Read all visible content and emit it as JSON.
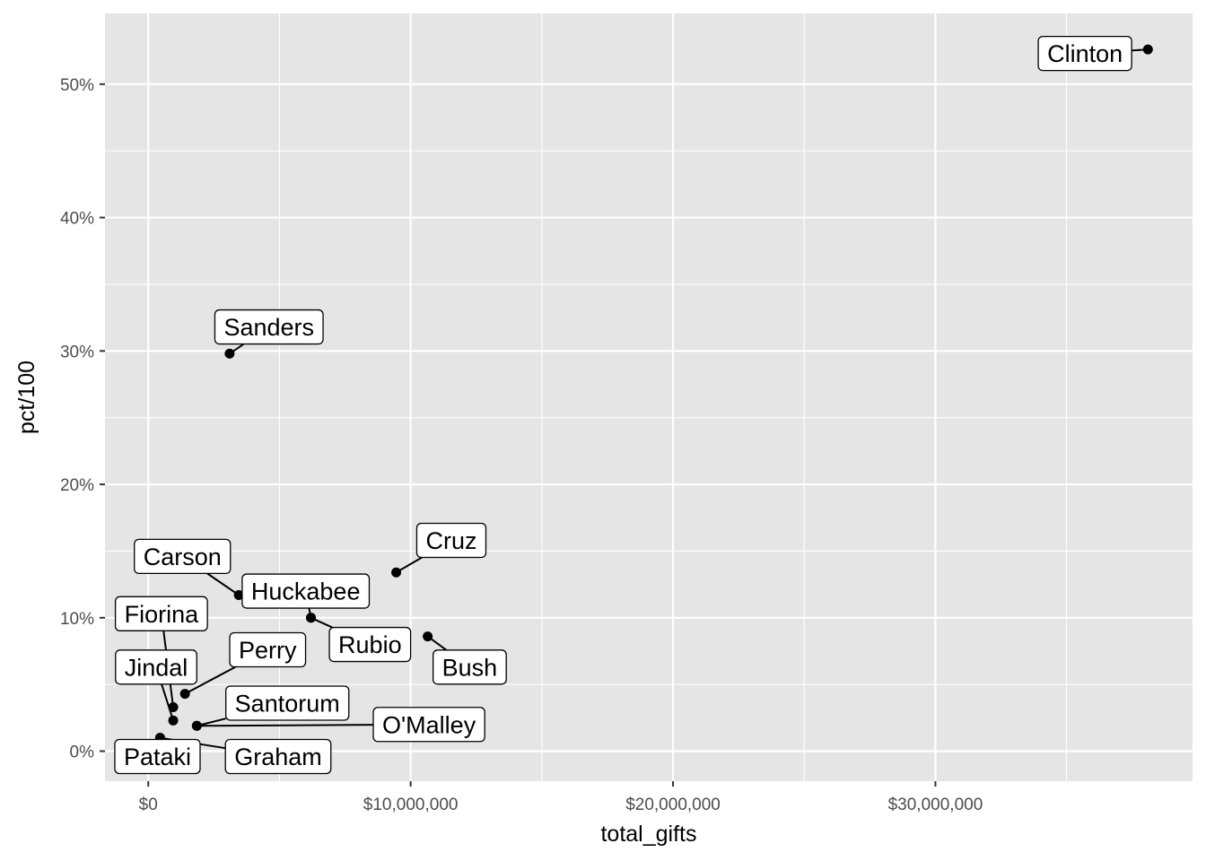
{
  "chart_data": {
    "type": "scatter",
    "xlabel": "total_gifts",
    "ylabel": "pct/100",
    "xlim": [
      -1650000,
      39800000
    ],
    "ylim": [
      -0.0225,
      0.553
    ],
    "x_ticks": [
      0,
      10000000,
      20000000,
      30000000
    ],
    "x_tick_labels": [
      "$0",
      "$10,000,000",
      "$20,000,000",
      "$30,000,000"
    ],
    "x_minor_ticks": [
      5000000,
      15000000,
      25000000,
      35000000
    ],
    "y_ticks": [
      0,
      0.1,
      0.2,
      0.3,
      0.4,
      0.5
    ],
    "y_tick_labels": [
      "0%",
      "10%",
      "20%",
      "30%",
      "40%",
      "50%"
    ],
    "y_minor_ticks": [
      0.05,
      0.15,
      0.25,
      0.35,
      0.45
    ],
    "grid": true,
    "colors": {
      "panel": "#e5e5e5",
      "grid": "#ffffff",
      "point": "#000000",
      "label_fill": "#ffffff"
    },
    "points": [
      {
        "name": "Clinton",
        "x": 38100000,
        "y": 0.526,
        "label_x": 35700000,
        "label_y": 0.523
      },
      {
        "name": "Sanders",
        "x": 3100000,
        "y": 0.298,
        "label_x": 4600000,
        "label_y": 0.318
      },
      {
        "name": "Cruz",
        "x": 9450000,
        "y": 0.134,
        "label_x": 11550000,
        "label_y": 0.158
      },
      {
        "name": "Carson",
        "x": 3450000,
        "y": 0.117,
        "label_x": 1300000,
        "label_y": 0.146
      },
      {
        "name": "Huckabee",
        "x": 6200000,
        "y": 0.1,
        "label_x": 6000000,
        "label_y": 0.12
      },
      {
        "name": "Rubio",
        "x": 6200000,
        "y": 0.1,
        "label_x": 8450000,
        "label_y": 0.08
      },
      {
        "name": "Bush",
        "x": 10650000,
        "y": 0.086,
        "label_x": 12250000,
        "label_y": 0.063
      },
      {
        "name": "Fiorina",
        "x": 950000,
        "y": 0.033,
        "label_x": 500000,
        "label_y": 0.103
      },
      {
        "name": "Perry",
        "x": 1400000,
        "y": 0.043,
        "label_x": 4550000,
        "label_y": 0.076
      },
      {
        "name": "Jindal",
        "x": 950000,
        "y": 0.023,
        "label_x": 300000,
        "label_y": 0.063
      },
      {
        "name": "Santorum",
        "x": 1850000,
        "y": 0.019,
        "label_x": 5300000,
        "label_y": 0.036
      },
      {
        "name": "O'Malley",
        "x": 1850000,
        "y": 0.019,
        "label_x": 10700000,
        "label_y": 0.02
      },
      {
        "name": "Pataki",
        "x": 450000,
        "y": 0.01,
        "label_x": 350000,
        "label_y": -0.004
      },
      {
        "name": "Graham",
        "x": 450000,
        "y": 0.01,
        "label_x": 4950000,
        "label_y": -0.004
      }
    ]
  }
}
